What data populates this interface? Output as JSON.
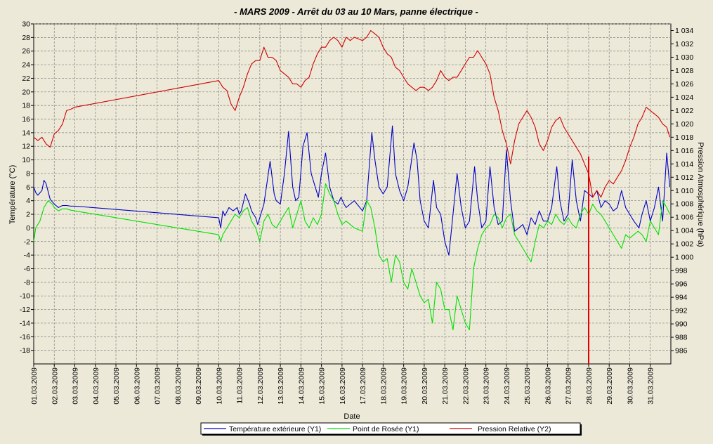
{
  "chart_data": {
    "type": "line",
    "title": "-  MARS  2009  -  Arrêt  du  03  au  10  Mars,  panne  électrique  -",
    "xlabel": "Date",
    "ylabel_left": "Température (°C)",
    "ylabel_right": "Pression Atmosphérique (hPa)",
    "y1lim": [
      -20,
      30
    ],
    "y1ticks": [
      30,
      28,
      26,
      24,
      22,
      20,
      18,
      16,
      14,
      12,
      10,
      8,
      6,
      4,
      2,
      0,
      -2,
      -4,
      -6,
      -8,
      -10,
      -12,
      -14,
      -16,
      -18
    ],
    "y2lim": [
      984,
      1035
    ],
    "y2ticks": [
      "1 034",
      "1 032",
      "1 030",
      "1 028",
      "1 026",
      "1 024",
      "1 022",
      "1 020",
      "1 018",
      "1 016",
      "1 014",
      "1 012",
      "1 010",
      "1 008",
      "1 006",
      "1 004",
      "1 002",
      "1 000",
      "998",
      "996",
      "994",
      "992",
      "990",
      "988",
      "986"
    ],
    "x_categories": [
      "01.03.2009",
      "02.03.2009",
      "03.03.2009",
      "04.03.2009",
      "05.03.2009",
      "06.03.2009",
      "07.03.2009",
      "08.03.2009",
      "09.03.2009",
      "10.03.2009",
      "11.03.2009",
      "12.03.2009",
      "13.03.2009",
      "14.03.2009",
      "15.03.2009",
      "16.03.2009",
      "17.03.2009",
      "18.03.2009",
      "19.03.2009",
      "20.03.2009",
      "21.03.2009",
      "22.03.2009",
      "23.03.2009",
      "24.03.2009",
      "25.03.2009",
      "26.03.2009",
      "27.03.2009",
      "28.03.2009",
      "29.03.2009",
      "30.03.2009",
      "31.03.2009"
    ],
    "grid": true,
    "legend_position": "bottom",
    "marker_day": 28.0,
    "marker_color": "#e00000",
    "series": [
      {
        "name": "Température extérieure (Y1)",
        "axis": "y1",
        "color": "#0000c8",
        "x": [
          1.0,
          1.1,
          1.2,
          1.4,
          1.5,
          1.6,
          1.8,
          2.0,
          2.2,
          2.4,
          2.6,
          2.8,
          3.0,
          10.0,
          10.1,
          10.2,
          10.3,
          10.5,
          10.7,
          10.9,
          11.0,
          11.1,
          11.3,
          11.5,
          11.6,
          11.8,
          11.9,
          12.0,
          12.2,
          12.5,
          12.7,
          12.8,
          13.0,
          13.2,
          13.4,
          13.6,
          13.75,
          13.9,
          14.1,
          14.3,
          14.5,
          14.7,
          14.85,
          15.0,
          15.2,
          15.4,
          15.6,
          15.8,
          15.95,
          16.1,
          16.2,
          16.4,
          16.6,
          17.0,
          17.2,
          17.45,
          17.6,
          17.8,
          18.0,
          18.2,
          18.45,
          18.6,
          18.8,
          19.0,
          19.2,
          19.5,
          19.65,
          19.8,
          20.0,
          20.2,
          20.45,
          20.6,
          20.8,
          21.0,
          21.2,
          21.4,
          21.6,
          21.8,
          22.0,
          22.2,
          22.45,
          22.6,
          22.8,
          23.0,
          23.2,
          23.4,
          23.6,
          23.8,
          24.0,
          24.2,
          24.4,
          24.6,
          24.8,
          25.0,
          25.2,
          25.4,
          25.6,
          25.8,
          26.0,
          26.2,
          26.45,
          26.6,
          26.8,
          27.0,
          27.2,
          27.4,
          27.6,
          27.8,
          28.0,
          28.2,
          28.4,
          28.6,
          28.8,
          29.0,
          29.2,
          29.4,
          29.6,
          29.8,
          30.0,
          30.2,
          30.45,
          30.6,
          30.8,
          31.0,
          31.2,
          31.4,
          31.6,
          31.8,
          31.95
        ],
        "values": [
          6.0,
          5.2,
          4.8,
          5.5,
          7.0,
          6.5,
          4.2,
          3.5,
          3.0,
          3.3,
          3.3,
          3.2,
          3.2,
          1.5,
          0.0,
          2.5,
          1.8,
          3.0,
          2.5,
          3.0,
          2.0,
          2.5,
          5.0,
          3.5,
          2.5,
          1.5,
          0.5,
          1.5,
          3.5,
          9.8,
          5.0,
          4.0,
          3.5,
          8.0,
          14.2,
          6.0,
          4.0,
          4.5,
          12.0,
          14.0,
          8.0,
          6.0,
          4.5,
          8.0,
          11.0,
          6.0,
          4.0,
          3.5,
          4.5,
          3.5,
          3.0,
          3.5,
          4.0,
          2.5,
          4.0,
          14.0,
          10.0,
          6.0,
          5.0,
          6.0,
          15.0,
          8.0,
          5.5,
          4.0,
          6.0,
          12.5,
          10.0,
          4.0,
          1.0,
          0.0,
          7.0,
          3.0,
          2.0,
          -2.0,
          -4.0,
          2.0,
          8.0,
          3.0,
          0.0,
          1.0,
          9.0,
          4.0,
          0.0,
          1.0,
          9.0,
          3.0,
          0.5,
          1.0,
          11.5,
          4.0,
          -0.5,
          0.0,
          0.5,
          -1.0,
          1.5,
          0.5,
          2.5,
          1.0,
          1.0,
          3.0,
          9.0,
          4.0,
          1.0,
          2.0,
          10.0,
          4.0,
          1.0,
          5.5,
          5.0,
          4.5,
          5.5,
          3.0,
          4.0,
          3.5,
          2.5,
          3.0,
          5.5,
          3.0,
          2.0,
          1.0,
          0.0,
          2.0,
          4.0,
          1.0,
          3.0,
          6.0,
          1.0,
          11.0,
          6.0
        ]
      },
      {
        "name": "Point de Rosée (Y1)",
        "axis": "y1",
        "color": "#00e000",
        "x": [
          1.0,
          1.1,
          1.3,
          1.5,
          1.7,
          1.9,
          2.0,
          2.2,
          2.4,
          2.6,
          2.8,
          3.0,
          10.0,
          10.1,
          10.2,
          10.4,
          10.6,
          10.8,
          11.0,
          11.2,
          11.4,
          11.6,
          11.8,
          12.0,
          12.2,
          12.4,
          12.6,
          12.8,
          13.0,
          13.2,
          13.4,
          13.6,
          13.8,
          14.0,
          14.2,
          14.4,
          14.6,
          14.8,
          15.0,
          15.2,
          15.4,
          15.6,
          15.8,
          16.0,
          16.2,
          16.4,
          16.6,
          17.0,
          17.2,
          17.4,
          17.6,
          17.8,
          18.0,
          18.2,
          18.4,
          18.6,
          18.8,
          19.0,
          19.2,
          19.4,
          19.6,
          19.8,
          20.0,
          20.2,
          20.4,
          20.6,
          20.8,
          21.0,
          21.2,
          21.4,
          21.6,
          21.8,
          22.0,
          22.2,
          22.4,
          22.6,
          22.8,
          23.0,
          23.2,
          23.4,
          23.6,
          23.8,
          24.0,
          24.2,
          24.4,
          24.6,
          24.8,
          25.0,
          25.2,
          25.4,
          25.6,
          25.8,
          26.0,
          26.2,
          26.4,
          26.6,
          26.8,
          27.0,
          27.2,
          27.4,
          27.6,
          27.8,
          28.0,
          28.2,
          28.4,
          28.6,
          28.8,
          29.0,
          29.2,
          29.4,
          29.6,
          29.8,
          30.0,
          30.2,
          30.4,
          30.6,
          30.8,
          31.0,
          31.2,
          31.4,
          31.6,
          31.8,
          31.95
        ],
        "values": [
          -2.0,
          0.0,
          1.0,
          3.0,
          4.0,
          3.5,
          3.0,
          2.5,
          2.8,
          2.8,
          2.6,
          2.5,
          -1.0,
          -2.0,
          -1.0,
          0.0,
          1.0,
          2.0,
          1.5,
          2.5,
          3.0,
          1.0,
          0.0,
          -2.0,
          1.0,
          2.0,
          0.5,
          0.0,
          1.0,
          2.0,
          3.0,
          0.0,
          2.0,
          4.0,
          1.0,
          0.0,
          1.5,
          0.5,
          2.0,
          6.5,
          5.0,
          4.0,
          2.0,
          0.5,
          1.0,
          0.5,
          0.0,
          -0.5,
          4.0,
          3.0,
          0.0,
          -4.0,
          -5.0,
          -4.5,
          -8.0,
          -4.0,
          -5.0,
          -8.0,
          -9.0,
          -6.0,
          -8.0,
          -10.0,
          -11.0,
          -10.5,
          -14.0,
          -8.0,
          -9.0,
          -12.0,
          -12.0,
          -15.0,
          -10.0,
          -12.0,
          -14.0,
          -15.0,
          -6.0,
          -3.0,
          -1.0,
          0.0,
          0.5,
          2.0,
          1.5,
          0.0,
          1.5,
          2.0,
          -1.0,
          -2.0,
          -3.0,
          -4.0,
          -5.0,
          -2.0,
          0.5,
          0.0,
          1.0,
          0.5,
          2.0,
          1.0,
          0.5,
          1.5,
          0.5,
          0.0,
          2.0,
          3.0,
          2.0,
          3.5,
          2.5,
          2.0,
          1.0,
          0.0,
          -1.0,
          -2.0,
          -3.0,
          -1.0,
          -1.5,
          -1.0,
          -0.5,
          -1.0,
          -2.0,
          1.0,
          0.0,
          -1.0,
          4.0,
          3.0,
          2.0
        ]
      },
      {
        "name": "Pression Relative (Y2)",
        "axis": "y2",
        "color": "#d00000",
        "x": [
          1.0,
          1.2,
          1.4,
          1.6,
          1.8,
          2.0,
          2.2,
          2.4,
          2.6,
          2.8,
          3.0,
          10.0,
          10.2,
          10.4,
          10.6,
          10.8,
          11.0,
          11.2,
          11.4,
          11.6,
          11.8,
          12.0,
          12.2,
          12.4,
          12.6,
          12.8,
          13.0,
          13.2,
          13.4,
          13.6,
          13.8,
          14.0,
          14.2,
          14.4,
          14.6,
          14.8,
          15.0,
          15.2,
          15.4,
          15.6,
          15.8,
          16.0,
          16.2,
          16.4,
          16.6,
          17.0,
          17.2,
          17.4,
          17.6,
          17.8,
          18.0,
          18.2,
          18.4,
          18.6,
          18.8,
          19.0,
          19.2,
          19.4,
          19.6,
          19.8,
          20.0,
          20.2,
          20.4,
          20.6,
          20.8,
          21.0,
          21.2,
          21.4,
          21.6,
          21.8,
          22.0,
          22.2,
          22.4,
          22.6,
          22.8,
          23.0,
          23.2,
          23.4,
          23.6,
          23.8,
          24.0,
          24.2,
          24.4,
          24.6,
          24.8,
          25.0,
          25.2,
          25.4,
          25.6,
          25.8,
          26.0,
          26.2,
          26.4,
          26.6,
          26.8,
          27.0,
          27.2,
          27.4,
          27.6,
          27.8,
          28.0,
          28.2,
          28.4,
          28.6,
          28.8,
          29.0,
          29.2,
          29.4,
          29.6,
          29.8,
          30.0,
          30.2,
          30.4,
          30.6,
          30.8,
          31.0,
          31.2,
          31.4,
          31.6,
          31.8,
          31.95
        ],
        "values": [
          1018.0,
          1017.5,
          1018.0,
          1017.0,
          1016.5,
          1018.5,
          1019.0,
          1020.0,
          1022.0,
          1022.2,
          1022.5,
          1026.5,
          1025.5,
          1025.0,
          1023.0,
          1022.0,
          1024.0,
          1025.5,
          1027.5,
          1029.0,
          1029.5,
          1029.5,
          1031.5,
          1030.0,
          1030.0,
          1029.5,
          1028.0,
          1027.5,
          1027.0,
          1026.0,
          1026.0,
          1025.5,
          1026.5,
          1027.0,
          1029.0,
          1030.5,
          1031.5,
          1031.5,
          1032.5,
          1033.0,
          1032.5,
          1031.5,
          1033.0,
          1032.5,
          1033.0,
          1032.5,
          1033.0,
          1034.0,
          1033.5,
          1033.0,
          1031.5,
          1030.5,
          1030.0,
          1028.5,
          1028.0,
          1027.0,
          1026.0,
          1025.5,
          1025.0,
          1025.5,
          1025.5,
          1025.0,
          1025.5,
          1026.5,
          1028.0,
          1027.0,
          1026.5,
          1027.0,
          1027.0,
          1028.0,
          1029.0,
          1030.0,
          1030.0,
          1031.0,
          1030.0,
          1029.0,
          1027.5,
          1024.0,
          1022.0,
          1019.0,
          1017.0,
          1014.0,
          1017.5,
          1020.0,
          1021.0,
          1022.0,
          1021.0,
          1019.5,
          1017.0,
          1016.0,
          1017.5,
          1019.5,
          1020.5,
          1021.0,
          1019.5,
          1018.5,
          1017.5,
          1016.5,
          1015.5,
          1014.0,
          1012.5,
          1009.0,
          1010.0,
          1009.0,
          1010.5,
          1011.5,
          1011.0,
          1012.0,
          1013.0,
          1014.5,
          1016.5,
          1018.0,
          1020.0,
          1021.0,
          1022.5,
          1022.0,
          1021.5,
          1021.0,
          1020.0,
          1019.5,
          1018.0
        ]
      }
    ]
  }
}
